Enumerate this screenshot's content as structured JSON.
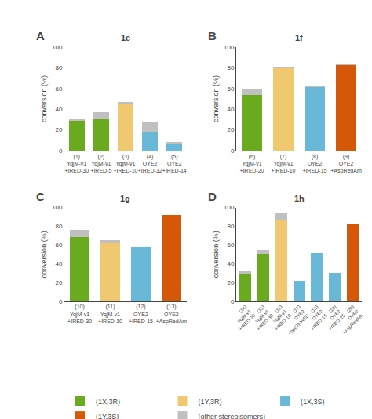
{
  "chart_data": [
    {
      "type": "bar",
      "label": "A",
      "title": "1e",
      "categories": [
        "(1)\nYqjM-v1\n+IRED-30",
        "(2)\nYqjM-v1\n+IRED-5",
        "(3)\nYqjM-v1\n+IRED-10",
        "(4)\nOYE2\n+IRED-32",
        "(5)\nOYE2\n+IRED-14"
      ],
      "series": [
        {
          "name": "(1X,3R)",
          "color": "#6aaa1e",
          "values": [
            29,
            30,
            0,
            0,
            0
          ]
        },
        {
          "name": "(1Y,3R)",
          "color": "#f0c870",
          "values": [
            0,
            0,
            45,
            0,
            0
          ]
        },
        {
          "name": "(1X,3S)",
          "color": "#6ab8d8",
          "values": [
            0,
            0,
            0,
            18,
            7
          ]
        },
        {
          "name": "(1Y,3S)",
          "color": "#d45808",
          "values": [
            0,
            0,
            0,
            0,
            0
          ]
        },
        {
          "name": "(other stereoisomers)",
          "color": "#c0c0c0",
          "values": [
            1,
            7,
            2,
            10,
            1
          ]
        }
      ],
      "stacked": true,
      "ylabel": "conversion (%)",
      "ylim": [
        0,
        100
      ],
      "yticks": [
        0,
        20,
        40,
        60,
        80,
        100
      ],
      "grid": false,
      "legend": "bottom"
    },
    {
      "type": "bar",
      "label": "B",
      "title": "1f",
      "categories": [
        "(6)\nYqjM-v1\n+IRED-20",
        "(7)\nYqjM-v1\n+IRED-10",
        "(8)\nOYE2\n+IRED-15",
        "(9)\nOYE2\n+AspRedAm"
      ],
      "series": [
        {
          "name": "(1X,3R)",
          "color": "#6aaa1e",
          "values": [
            54,
            0,
            0,
            0
          ]
        },
        {
          "name": "(1Y,3R)",
          "color": "#f0c870",
          "values": [
            0,
            80,
            0,
            0
          ]
        },
        {
          "name": "(1X,3S)",
          "color": "#6ab8d8",
          "values": [
            0,
            0,
            62,
            0
          ]
        },
        {
          "name": "(1Y,3S)",
          "color": "#d45808",
          "values": [
            0,
            0,
            0,
            83
          ]
        },
        {
          "name": "(other stereoisomers)",
          "color": "#c0c0c0",
          "values": [
            6,
            1,
            1,
            1
          ]
        }
      ],
      "stacked": true,
      "ylabel": "conversion (%)",
      "ylim": [
        0,
        100
      ],
      "yticks": [
        0,
        20,
        40,
        60,
        80,
        100
      ],
      "grid": false,
      "legend": "bottom"
    },
    {
      "type": "bar",
      "label": "C",
      "title": "1g",
      "categories": [
        "(10)\nYqjM-v1\n+IRED-30",
        "(11)\nYqjM-v1\n+IRED-10",
        "(12)\nOYE2\n+IRED-15",
        "(13)\nOYE2\n+AspRedAm"
      ],
      "series": [
        {
          "name": "(1X,3R)",
          "color": "#6aaa1e",
          "values": [
            69,
            0,
            0,
            0
          ]
        },
        {
          "name": "(1Y,3R)",
          "color": "#f0c870",
          "values": [
            0,
            62,
            0,
            0
          ]
        },
        {
          "name": "(1X,3S)",
          "color": "#6ab8d8",
          "values": [
            0,
            0,
            58,
            0
          ]
        },
        {
          "name": "(1Y,3S)",
          "color": "#d45808",
          "values": [
            0,
            0,
            0,
            92
          ]
        },
        {
          "name": "(other stereoisomers)",
          "color": "#c0c0c0",
          "values": [
            7,
            3,
            0,
            0
          ]
        }
      ],
      "stacked": true,
      "ylabel": "conversion (%)",
      "ylim": [
        0,
        100
      ],
      "yticks": [
        0,
        20,
        40,
        60,
        80,
        100
      ],
      "grid": false,
      "legend": "bottom"
    },
    {
      "type": "bar",
      "label": "D",
      "title": "1h",
      "categories": [
        "(14)\nYqjM-v1\n+IRED-20",
        "(15)\nYqjM-v1\n+IRED-30",
        "(16)\nYqjM-v1\n+IRED-10",
        "(17)\nOYE2\n+Sp(S)-IRED",
        "(18)\nOYE2\n+IRED-15",
        "(19)\nOYE2\n+IRED-25",
        "(20)\nOYE2\n+AspRedAm"
      ],
      "series": [
        {
          "name": "(1X,3R)",
          "color": "#6aaa1e",
          "values": [
            29,
            50,
            0,
            0,
            0,
            0,
            0
          ]
        },
        {
          "name": "(1Y,3R)",
          "color": "#f0c870",
          "values": [
            0,
            0,
            87,
            0,
            0,
            0,
            0
          ]
        },
        {
          "name": "(1X,3S)",
          "color": "#6ab8d8",
          "values": [
            0,
            0,
            0,
            22,
            52,
            30,
            0
          ]
        },
        {
          "name": "(1Y,3S)",
          "color": "#d45808",
          "values": [
            0,
            0,
            0,
            0,
            0,
            0,
            82
          ]
        },
        {
          "name": "(other stereoisomers)",
          "color": "#c0c0c0",
          "values": [
            3,
            5,
            7,
            0,
            0,
            0,
            0
          ]
        }
      ],
      "stacked": true,
      "ylabel": "conversion (%)",
      "ylim": [
        0,
        100
      ],
      "yticks": [
        0,
        20,
        40,
        60,
        80,
        100
      ],
      "grid": false,
      "legend": "bottom"
    }
  ]
}
